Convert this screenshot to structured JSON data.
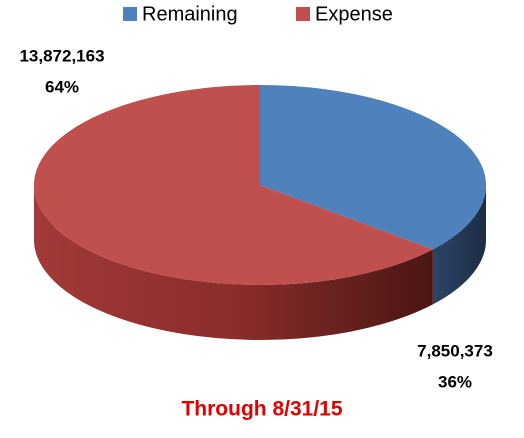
{
  "chart_data": {
    "type": "pie3d",
    "title": "Through 8/31/15",
    "categories": [
      "Remaining",
      "Expense"
    ],
    "values": [
      7850373,
      13872163
    ],
    "value_labels": [
      "7,850,373",
      "13,872,163"
    ],
    "percent_values": [
      36,
      64
    ],
    "percent_labels": [
      "36%",
      "64%"
    ],
    "colors": [
      "#4f81bd",
      "#c0504d"
    ],
    "legend": "top"
  }
}
